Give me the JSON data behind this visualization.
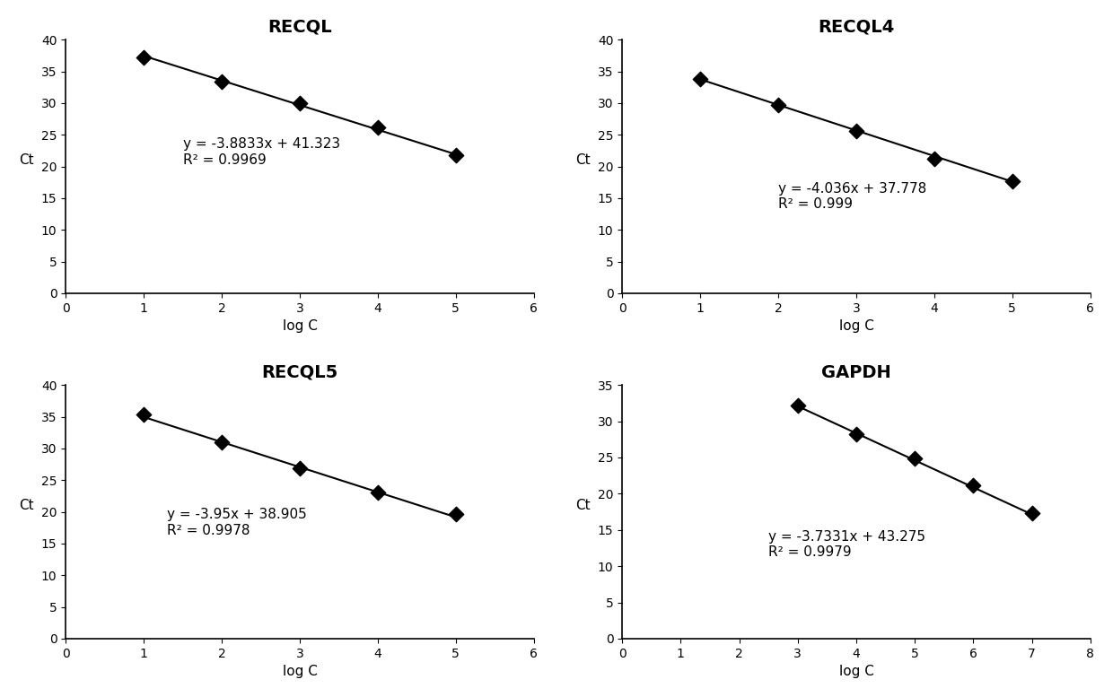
{
  "subplots": [
    {
      "title": "RECQL",
      "xlabel": "log C",
      "ylabel": "Ct",
      "x_data": [
        1,
        2,
        3,
        4,
        5
      ],
      "y_data": [
        37.2,
        33.4,
        30.0,
        26.1,
        21.7
      ],
      "equation": "y = -3.8833x + 41.323",
      "r2": "R² = 0.9969",
      "xlim": [
        0,
        6
      ],
      "ylim": [
        0,
        40
      ],
      "xticks": [
        0,
        1,
        2,
        3,
        4,
        5,
        6
      ],
      "yticks": [
        0,
        5,
        10,
        15,
        20,
        25,
        30,
        35,
        40
      ],
      "eq_x": 1.5,
      "eq_y": 20,
      "slope": -3.8833,
      "intercept": 41.323,
      "line_x_start": 1,
      "line_x_end": 5
    },
    {
      "title": "RECQL4",
      "xlabel": "log C",
      "ylabel": "Ct",
      "x_data": [
        1,
        2,
        3,
        4,
        5
      ],
      "y_data": [
        33.8,
        29.7,
        25.6,
        21.2,
        17.6
      ],
      "equation": "y = -4.036x + 37.778",
      "r2": "R² = 0.999",
      "xlim": [
        0,
        6
      ],
      "ylim": [
        0,
        40
      ],
      "xticks": [
        0,
        1,
        2,
        3,
        4,
        5,
        6
      ],
      "yticks": [
        0,
        5,
        10,
        15,
        20,
        25,
        30,
        35,
        40
      ],
      "eq_x": 2.0,
      "eq_y": 13,
      "slope": -4.036,
      "intercept": 37.778,
      "line_x_start": 1,
      "line_x_end": 5
    },
    {
      "title": "RECQL5",
      "xlabel": "log C",
      "ylabel": "Ct",
      "x_data": [
        1,
        2,
        3,
        4,
        5
      ],
      "y_data": [
        35.3,
        31.0,
        26.8,
        23.1,
        19.7
      ],
      "equation": "y = -3.95x + 38.905",
      "r2": "R² = 0.9978",
      "xlim": [
        0,
        6
      ],
      "ylim": [
        0,
        40
      ],
      "xticks": [
        0,
        1,
        2,
        3,
        4,
        5,
        6
      ],
      "yticks": [
        0,
        5,
        10,
        15,
        20,
        25,
        30,
        35,
        40
      ],
      "eq_x": 1.3,
      "eq_y": 16,
      "slope": -3.95,
      "intercept": 38.905,
      "line_x_start": 1,
      "line_x_end": 5
    },
    {
      "title": "GAPDH",
      "xlabel": "log C",
      "ylabel": "Ct",
      "x_data": [
        3,
        4,
        5,
        6,
        7
      ],
      "y_data": [
        32.2,
        28.2,
        24.9,
        21.2,
        17.3
      ],
      "equation": "y = -3.7331x + 43.275",
      "r2": "R² = 0.9979",
      "xlim": [
        0,
        8
      ],
      "ylim": [
        0,
        35
      ],
      "xticks": [
        0,
        1,
        2,
        3,
        4,
        5,
        6,
        7,
        8
      ],
      "yticks": [
        0,
        5,
        10,
        15,
        20,
        25,
        30,
        35
      ],
      "eq_x": 2.5,
      "eq_y": 11,
      "slope": -3.7331,
      "intercept": 43.275,
      "line_x_start": 3,
      "line_x_end": 7
    }
  ],
  "background_color": "#ffffff",
  "text_color": "#000000",
  "line_color": "#000000",
  "marker_color": "#000000"
}
